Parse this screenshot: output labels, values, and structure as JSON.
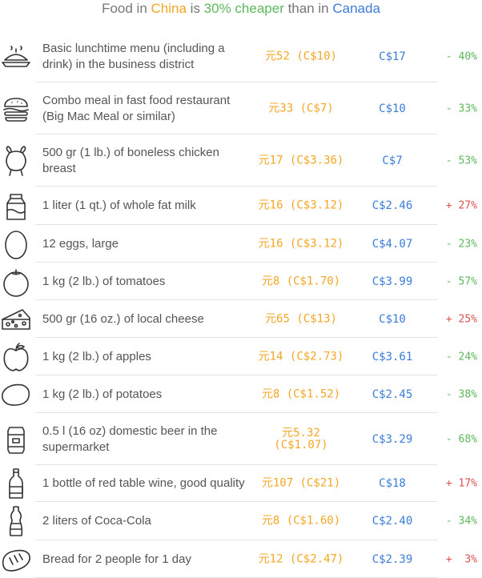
{
  "header": {
    "prefix": "Food in ",
    "country1": "China",
    "is": " is ",
    "percent_phrase": "30% cheaper",
    "than": " than in ",
    "country2": "Canada"
  },
  "colors": {
    "china": "#f5a623",
    "canada": "#3b7dd8",
    "cheaper": "#5cb85c",
    "pricier": "#d9534f"
  },
  "rows": [
    {
      "icon": "lunch-plate-icon",
      "label": "Basic lunchtime menu (including a drink) in the business district",
      "china": "元52 (C$10)",
      "canada": "C$17",
      "diff": "- 40%",
      "cheaper": true
    },
    {
      "icon": "burger-icon",
      "label": "Combo meal in fast food restaurant (Big Mac Meal or similar)",
      "china": "元33 (C$7)",
      "canada": "C$10",
      "diff": "- 33%",
      "cheaper": true
    },
    {
      "icon": "chicken-icon",
      "label": "500 gr (1 lb.) of boneless chicken breast",
      "china": "元17 (C$3.36)",
      "canada": "C$7",
      "diff": "- 53%",
      "cheaper": true
    },
    {
      "icon": "milk-carton-icon",
      "label": "1 liter (1 qt.) of whole fat milk",
      "china": "元16 (C$3.12)",
      "canada": "C$2.46",
      "diff": "+ 27%",
      "cheaper": false
    },
    {
      "icon": "egg-icon",
      "label": "12 eggs, large",
      "china": "元16 (C$3.12)",
      "canada": "C$4.07",
      "diff": "- 23%",
      "cheaper": true
    },
    {
      "icon": "tomato-icon",
      "label": "1 kg (2 lb.) of tomatoes",
      "china": "元8 (C$1.70)",
      "canada": "C$3.99",
      "diff": "- 57%",
      "cheaper": true
    },
    {
      "icon": "cheese-icon",
      "label": "500 gr (16 oz.) of local cheese",
      "china": "元65 (C$13)",
      "canada": "C$10",
      "diff": "+ 25%",
      "cheaper": false
    },
    {
      "icon": "apple-icon",
      "label": "1 kg (2 lb.) of apples",
      "china": "元14 (C$2.73)",
      "canada": "C$3.61",
      "diff": "- 24%",
      "cheaper": true
    },
    {
      "icon": "potato-icon",
      "label": "1 kg (2 lb.) of potatoes",
      "china": "元8 (C$1.52)",
      "canada": "C$2.45",
      "diff": "- 38%",
      "cheaper": true
    },
    {
      "icon": "beer-can-icon",
      "label": "0.5 l (16 oz) domestic beer in the supermarket",
      "china": "元5.32 (C$1.07)",
      "canada": "C$3.29",
      "diff": "- 68%",
      "cheaper": true
    },
    {
      "icon": "wine-bottle-icon",
      "label": "1 bottle of red table wine, good quality",
      "china": "元107 (C$21)",
      "canada": "C$18",
      "diff": "+ 17%",
      "cheaper": false
    },
    {
      "icon": "cola-bottle-icon",
      "label": "2 liters of Coca-Cola",
      "china": "元8 (C$1.60)",
      "canada": "C$2.40",
      "diff": "- 34%",
      "cheaper": true
    },
    {
      "icon": "bread-icon",
      "label": "Bread for 2 people for 1 day",
      "china": "元12 (C$2.47)",
      "canada": "C$2.39",
      "diff": "+  3%",
      "cheaper": false
    }
  ]
}
